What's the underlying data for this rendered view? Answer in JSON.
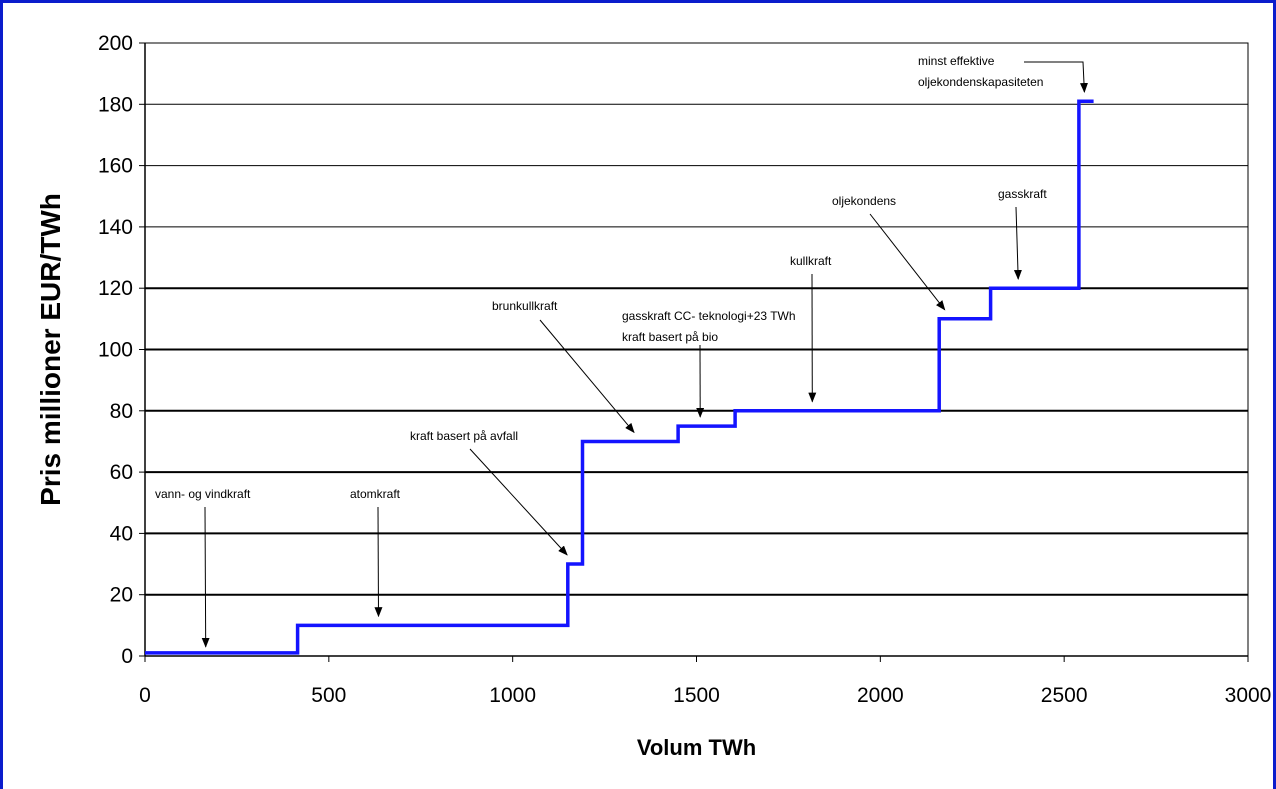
{
  "chart_data": {
    "type": "line",
    "step": true,
    "xlabel": "Volum TWh",
    "ylabel": "Pris millioner EUR/TWh",
    "xlim": [
      0,
      3000
    ],
    "ylim": [
      0,
      200
    ],
    "x_ticks": [
      "0",
      "500",
      "1000",
      "1500",
      "2000",
      "2500",
      "3000"
    ],
    "y_ticks": [
      "0",
      "20",
      "40",
      "60",
      "80",
      "100",
      "120",
      "140",
      "160",
      "180",
      "200"
    ],
    "grid": "horizontal",
    "series": [
      {
        "color": "#1414ff",
        "points": [
          [
            0,
            1
          ],
          [
            415,
            1
          ],
          [
            415,
            10
          ],
          [
            1150,
            10
          ],
          [
            1150,
            30
          ],
          [
            1190,
            30
          ],
          [
            1190,
            70
          ],
          [
            1450,
            70
          ],
          [
            1450,
            75
          ],
          [
            1605,
            75
          ],
          [
            1605,
            80
          ],
          [
            2160,
            80
          ],
          [
            2160,
            110
          ],
          [
            2300,
            110
          ],
          [
            2300,
            120
          ],
          [
            2540,
            120
          ],
          [
            2540,
            181
          ],
          [
            2580,
            181
          ]
        ]
      }
    ],
    "annotations": [
      {
        "lines": [
          "vann- og vindkraft"
        ],
        "target": [
          165,
          3
        ]
      },
      {
        "lines": [
          "atomkraft"
        ],
        "target": [
          635,
          13
        ]
      },
      {
        "lines": [
          "kraft basert på avfall"
        ],
        "target": [
          1148,
          33
        ]
      },
      {
        "lines": [
          "brunkullkraft"
        ],
        "target": [
          1330,
          73
        ]
      },
      {
        "lines": [
          "gasskraft CC- teknologi+23 TWh",
          "kraft basert på bio"
        ],
        "target": [
          1510,
          78
        ]
      },
      {
        "lines": [
          "kullkraft"
        ],
        "target": [
          1815,
          83
        ]
      },
      {
        "lines": [
          "oljekondens"
        ],
        "target": [
          2175,
          113
        ]
      },
      {
        "lines": [
          "gasskraft"
        ],
        "target": [
          2375,
          123
        ]
      },
      {
        "lines": [
          "minst effektive",
          "oljekondenskapasiteten"
        ],
        "target": [
          2555,
          184
        ]
      }
    ]
  }
}
